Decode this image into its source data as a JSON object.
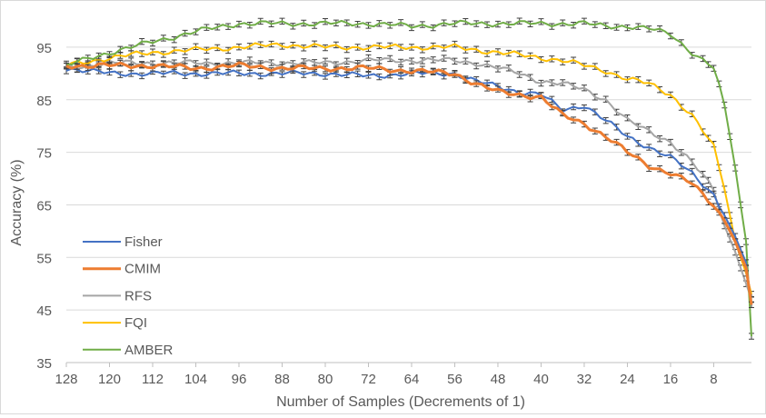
{
  "chart_data": {
    "type": "line",
    "title": "",
    "xlabel": "Number of Samples (Decrements of 1)",
    "ylabel": "Accuracy (%)",
    "x_reversed": true,
    "xlim": [
      1,
      128
    ],
    "ylim": [
      35,
      100
    ],
    "x_ticks": [
      128,
      120,
      112,
      104,
      96,
      88,
      80,
      72,
      64,
      56,
      48,
      40,
      32,
      24,
      16,
      8
    ],
    "y_ticks": [
      35,
      45,
      55,
      65,
      75,
      85,
      95
    ],
    "grid": "horizontal",
    "error_bars": true,
    "legend_position": "left-bottom",
    "x_anchors": [
      128,
      120,
      112,
      104,
      96,
      88,
      80,
      72,
      64,
      56,
      52,
      48,
      44,
      40,
      36,
      32,
      28,
      24,
      20,
      16,
      12,
      8,
      6,
      4,
      2,
      1
    ],
    "series": [
      {
        "name": "Fisher",
        "color": "#4472c4",
        "width": 2,
        "values": [
          91,
          90,
          90,
          90,
          90,
          90,
          90,
          89.5,
          90,
          90,
          88.5,
          87.5,
          86.5,
          86,
          83,
          84,
          81,
          78,
          76,
          74,
          71,
          67,
          63,
          59,
          54,
          46
        ]
      },
      {
        "name": "CMIM",
        "color": "#ed7d31",
        "width": 3,
        "values": [
          91.5,
          91.5,
          91.5,
          91,
          91.5,
          91,
          91,
          91,
          90.5,
          90,
          88,
          86.5,
          86,
          85.5,
          82,
          80.5,
          78,
          75,
          72.5,
          71,
          69,
          65,
          62,
          58,
          53,
          46
        ]
      },
      {
        "name": "RFS",
        "color": "#a5a5a5",
        "width": 2,
        "values": [
          91,
          92,
          92,
          92,
          92,
          92,
          92,
          92.5,
          92.5,
          92.5,
          92,
          91,
          90,
          88.5,
          88,
          87,
          85,
          81,
          79,
          77,
          73,
          68,
          61,
          56,
          50,
          47
        ]
      },
      {
        "name": "FQI",
        "color": "#ffc000",
        "width": 2,
        "values": [
          91.5,
          93,
          94,
          94.5,
          95,
          95.5,
          95,
          95,
          95,
          95,
          94.5,
          94,
          93.5,
          93,
          92.5,
          91.5,
          90.5,
          89,
          88,
          86,
          82,
          76,
          68,
          58,
          52,
          48
        ]
      },
      {
        "name": "AMBER",
        "color": "#70ad47",
        "width": 2,
        "values": [
          91.5,
          94,
          96,
          98,
          99.5,
          99.5,
          99.5,
          99.5,
          99,
          99.5,
          99.5,
          99.5,
          99.5,
          99.5,
          99.5,
          99.5,
          99,
          99,
          98.5,
          97.5,
          94,
          91,
          84,
          72,
          58,
          40
        ]
      }
    ]
  }
}
